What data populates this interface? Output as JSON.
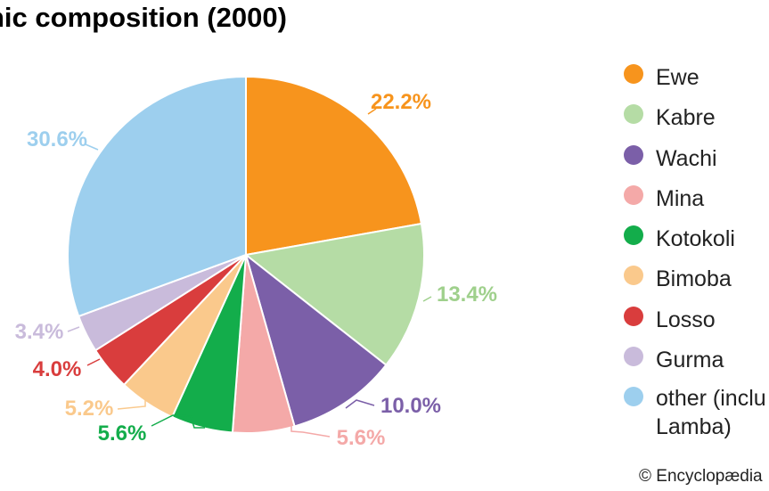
{
  "title": "nic composition (2000)",
  "credit": "© Encyclopædia",
  "chart_data": {
    "type": "pie",
    "title": "nic composition (2000)",
    "slices": [
      {
        "name": "Ewe",
        "value": 22.2,
        "label": "22.2%",
        "color": "#f7941d"
      },
      {
        "name": "Kabre",
        "value": 13.4,
        "label": "13.4%",
        "color": "#b5dca5"
      },
      {
        "name": "Wachi",
        "value": 10.0,
        "label": "10.0%",
        "color": "#7b5fa8"
      },
      {
        "name": "Mina",
        "value": 5.6,
        "label": "5.6%",
        "color": "#f4a9a8"
      },
      {
        "name": "Kotokoli",
        "value": 5.6,
        "label": "5.6%",
        "color": "#13ad4b"
      },
      {
        "name": "Bimoba",
        "value": 5.2,
        "label": "5.2%",
        "color": "#fac98c"
      },
      {
        "name": "Losso",
        "value": 4.0,
        "label": "4.0%",
        "color": "#d93d3d"
      },
      {
        "name": "Gurma",
        "value": 3.4,
        "label": "3.4%",
        "color": "#c9bbdb"
      },
      {
        "name": "other (inclu",
        "name_line2": "Lamba)",
        "value": 30.6,
        "label": "30.6%",
        "color": "#9dcfee"
      }
    ],
    "legend_position": "right"
  }
}
